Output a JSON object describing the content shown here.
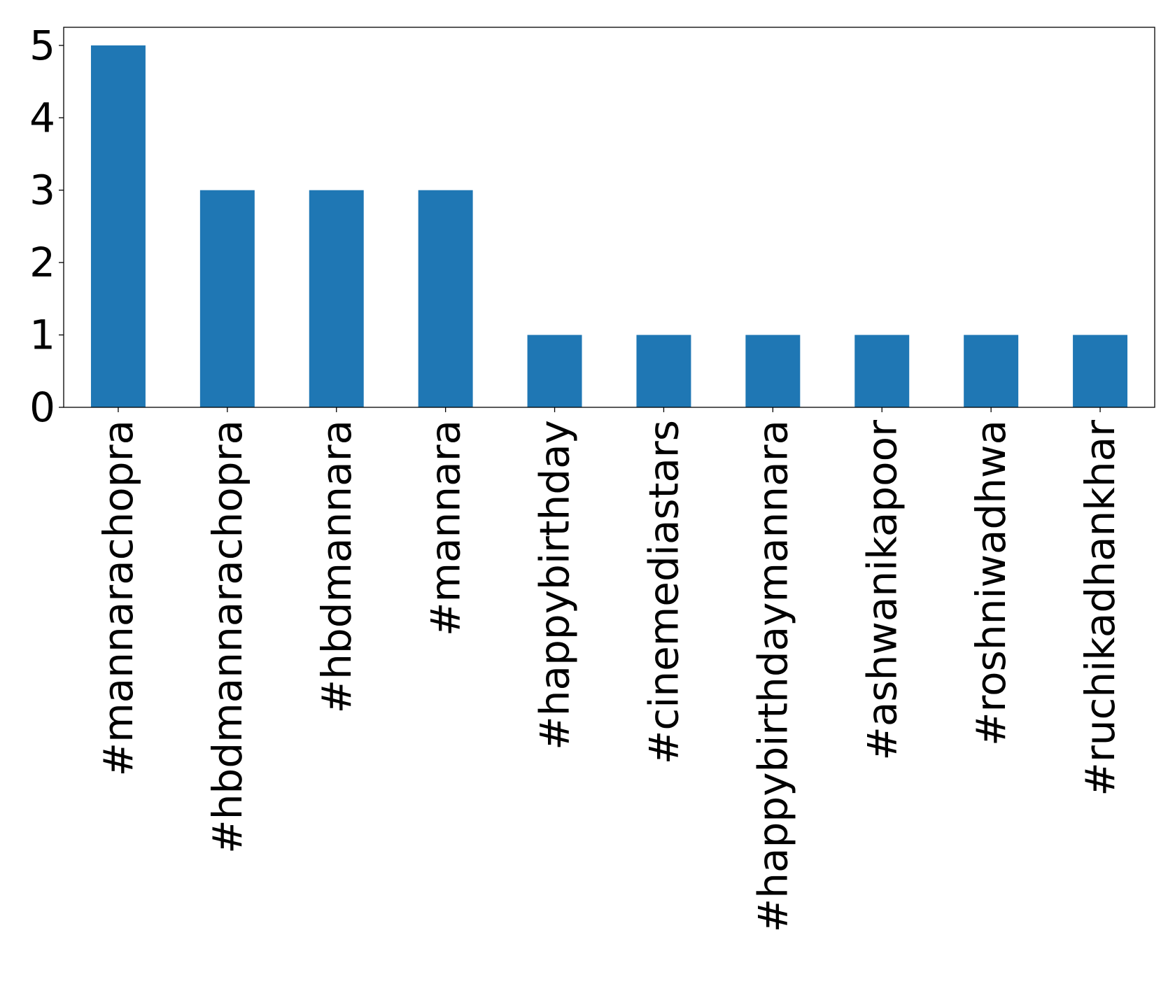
{
  "chart_data": {
    "type": "bar",
    "title": "",
    "xlabel": "",
    "ylabel": "",
    "categories": [
      "#mannarachopra",
      "#hbdmannarachopra",
      "#hbdmannara",
      "#mannara",
      "#happybirthday",
      "#cinemediastars",
      "#happybirthdaymannara",
      "#ashwanikapoor",
      "#roshniwadhwa",
      "#ruchikadhankhar"
    ],
    "values": [
      5,
      3,
      3,
      3,
      1,
      1,
      1,
      1,
      1,
      1
    ],
    "ylim": [
      0,
      5.25
    ],
    "yticks": [
      0,
      1,
      2,
      3,
      4,
      5
    ],
    "grid": false,
    "legend": "none",
    "bar_color": "#1f77b4"
  }
}
